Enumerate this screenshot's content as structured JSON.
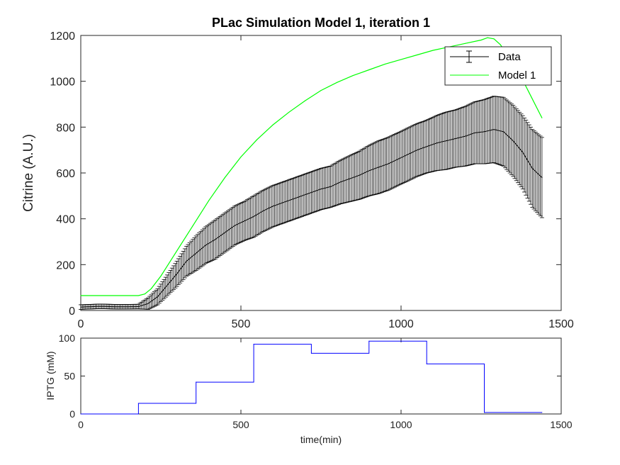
{
  "chart_data": [
    {
      "type": "line",
      "title": "PLac Simulation Model 1, iteration 1",
      "xlabel": "",
      "ylabel": "Citrine (A.U.)",
      "xlim": [
        0,
        1500
      ],
      "ylim": [
        0,
        1200
      ],
      "xticks": [
        "0",
        "500",
        "1000",
        "1500"
      ],
      "yticks": [
        "0",
        "200",
        "400",
        "600",
        "800",
        "1000",
        "1200"
      ],
      "legend": {
        "placement": "top-right",
        "entries": [
          "Data",
          "Model 1"
        ]
      },
      "series": [
        {
          "name": "Data",
          "style": "errorbar",
          "color": "#000000",
          "x": [
            0,
            60,
            120,
            180,
            210,
            240,
            270,
            300,
            330,
            360,
            390,
            420,
            450,
            480,
            510,
            540,
            570,
            600,
            630,
            660,
            690,
            720,
            750,
            780,
            810,
            840,
            870,
            900,
            930,
            960,
            990,
            1020,
            1050,
            1080,
            1110,
            1140,
            1170,
            1200,
            1230,
            1260,
            1290,
            1320,
            1350,
            1380,
            1410,
            1440
          ],
          "y": [
            15,
            18,
            16,
            17,
            30,
            60,
            110,
            160,
            215,
            250,
            285,
            310,
            340,
            370,
            390,
            410,
            435,
            455,
            470,
            485,
            500,
            515,
            530,
            540,
            560,
            575,
            590,
            610,
            625,
            640,
            660,
            680,
            700,
            715,
            730,
            740,
            750,
            760,
            775,
            780,
            790,
            780,
            740,
            690,
            620,
            580
          ],
          "err": [
            10,
            10,
            10,
            10,
            25,
            35,
            45,
            55,
            65,
            75,
            80,
            85,
            85,
            85,
            85,
            90,
            90,
            90,
            90,
            90,
            90,
            90,
            90,
            90,
            95,
            100,
            105,
            110,
            115,
            115,
            115,
            115,
            115,
            115,
            120,
            125,
            125,
            130,
            135,
            140,
            145,
            150,
            155,
            160,
            170,
            175
          ]
        },
        {
          "name": "Model 1",
          "style": "line",
          "color": "#00ff00",
          "x": [
            0,
            180,
            200,
            220,
            250,
            300,
            350,
            400,
            450,
            500,
            550,
            600,
            650,
            700,
            750,
            800,
            850,
            900,
            950,
            1000,
            1050,
            1100,
            1150,
            1200,
            1250,
            1270,
            1290,
            1310,
            1330,
            1360,
            1400,
            1440
          ],
          "y": [
            65,
            65,
            72,
            95,
            150,
            260,
            370,
            480,
            580,
            670,
            745,
            810,
            865,
            915,
            960,
            995,
            1025,
            1050,
            1075,
            1095,
            1115,
            1135,
            1150,
            1165,
            1180,
            1190,
            1185,
            1160,
            1120,
            1060,
            950,
            840
          ]
        }
      ]
    },
    {
      "type": "line",
      "title": "",
      "xlabel": "time(min)",
      "ylabel": "IPTG (mM)",
      "xlim": [
        0,
        1500
      ],
      "ylim": [
        0,
        100
      ],
      "xticks": [
        "0",
        "500",
        "1000",
        "1500"
      ],
      "yticks": [
        "0",
        "50",
        "100"
      ],
      "series": [
        {
          "name": "IPTG",
          "style": "stairs",
          "color": "#0000ff",
          "x": [
            0,
            180,
            360,
            540,
            720,
            900,
            1080,
            1260,
            1440
          ],
          "y": [
            0,
            14,
            42,
            92,
            80,
            96,
            66,
            2,
            2
          ]
        }
      ]
    }
  ]
}
